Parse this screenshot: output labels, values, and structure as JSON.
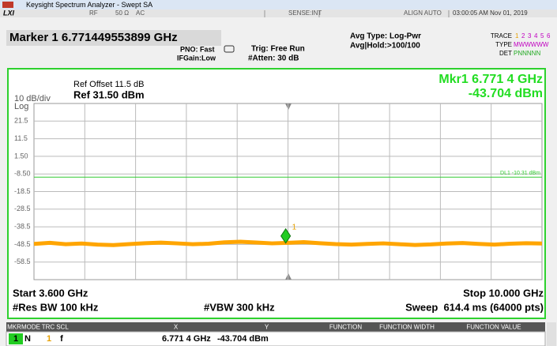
{
  "window": {
    "title": "Keysight Spectrum Analyzer - Swept SA"
  },
  "status_bar": {
    "rf": "RF",
    "impedance": "50 Ω",
    "coupling": "AC",
    "sense": "SENSE:INT",
    "align": "ALIGN AUTO",
    "datetime": "03:00:05 AM Nov 01, 2019"
  },
  "marker_header": {
    "readout": "Marker 1 6.771449553899 GHz",
    "pno": "PNO: Fast",
    "ifgain": "IFGain:Low",
    "trig": "Trig: Free Run",
    "atten": "#Atten: 30 dB",
    "avg_type": "Avg Type: Log-Pwr",
    "avg_hold": "Avg|Hold:>100/100",
    "trace_label": "TRACE",
    "trace_numbers": [
      "1",
      "2",
      "3",
      "4",
      "5",
      "6"
    ],
    "type_label": "TYPE",
    "type_value": "MWWWWW",
    "det_label": "DET",
    "det_value": "PNNNNN"
  },
  "display": {
    "scale": "10 dB/div",
    "scale_type": "Log",
    "ref_offset": "Ref Offset 11.5 dB",
    "ref_level": "Ref 31.50 dBm",
    "marker_freq": "Mkr1 6.771 4 GHz",
    "marker_amp": "-43.704 dBm",
    "xlim": [
      3.6,
      10.0
    ],
    "x_divisions": 10,
    "ylim": [
      -68.5,
      31.5
    ],
    "yticks": [
      21.5,
      11.5,
      {
        "value": 1.5,
        "label": "1.50"
      },
      {
        "value": -8.5,
        "label": "-8.50"
      },
      -18.5,
      -28.5,
      -38.5,
      -48.5,
      -58.5
    ],
    "display_line": {
      "value": -10.31,
      "label": "DL1 -10.31 dBm",
      "color": "#33cc33"
    },
    "marker": {
      "label": "1",
      "x": 6.771449553899,
      "y": -43.704,
      "color": "#22cc22"
    },
    "trace": {
      "color": "#ffa500",
      "x": [
        3.6,
        3.8,
        4.0,
        4.2,
        4.4,
        4.6,
        4.8,
        5.0,
        5.2,
        5.4,
        5.6,
        5.8,
        6.0,
        6.2,
        6.4,
        6.6,
        6.8,
        7.0,
        7.2,
        7.4,
        7.6,
        7.8,
        8.0,
        8.2,
        8.4,
        8.6,
        8.8,
        9.0,
        9.2,
        9.4,
        9.6,
        9.8,
        10.0
      ],
      "values": [
        -48.2,
        -47.6,
        -48.4,
        -48.0,
        -48.6,
        -48.9,
        -48.3,
        -47.8,
        -47.5,
        -47.9,
        -48.4,
        -48.1,
        -47.3,
        -47.0,
        -47.4,
        -47.9,
        -47.6,
        -47.2,
        -47.8,
        -48.3,
        -48.6,
        -48.2,
        -47.9,
        -48.4,
        -48.8,
        -48.5,
        -48.0,
        -47.7,
        -48.2,
        -48.6,
        -48.1,
        -47.8,
        -48.0
      ]
    },
    "start": "Start 3.600 GHz",
    "stop": "Stop 10.000 GHz",
    "rbw": "#Res BW 100 kHz",
    "vbw": "#VBW 300 kHz",
    "sweep": "Sweep  614.4 ms (64000 pts)"
  },
  "marker_table": {
    "headers": [
      "MKR",
      "MODE",
      "TRC",
      "SCL",
      "X",
      "Y",
      "FUNCTION",
      "FUNCTION WIDTH",
      "FUNCTION VALUE"
    ],
    "rows": [
      [
        "1",
        "N",
        "1",
        "f",
        "6.771 4 GHz",
        "-43.704 dBm",
        "",
        "",
        ""
      ]
    ]
  }
}
